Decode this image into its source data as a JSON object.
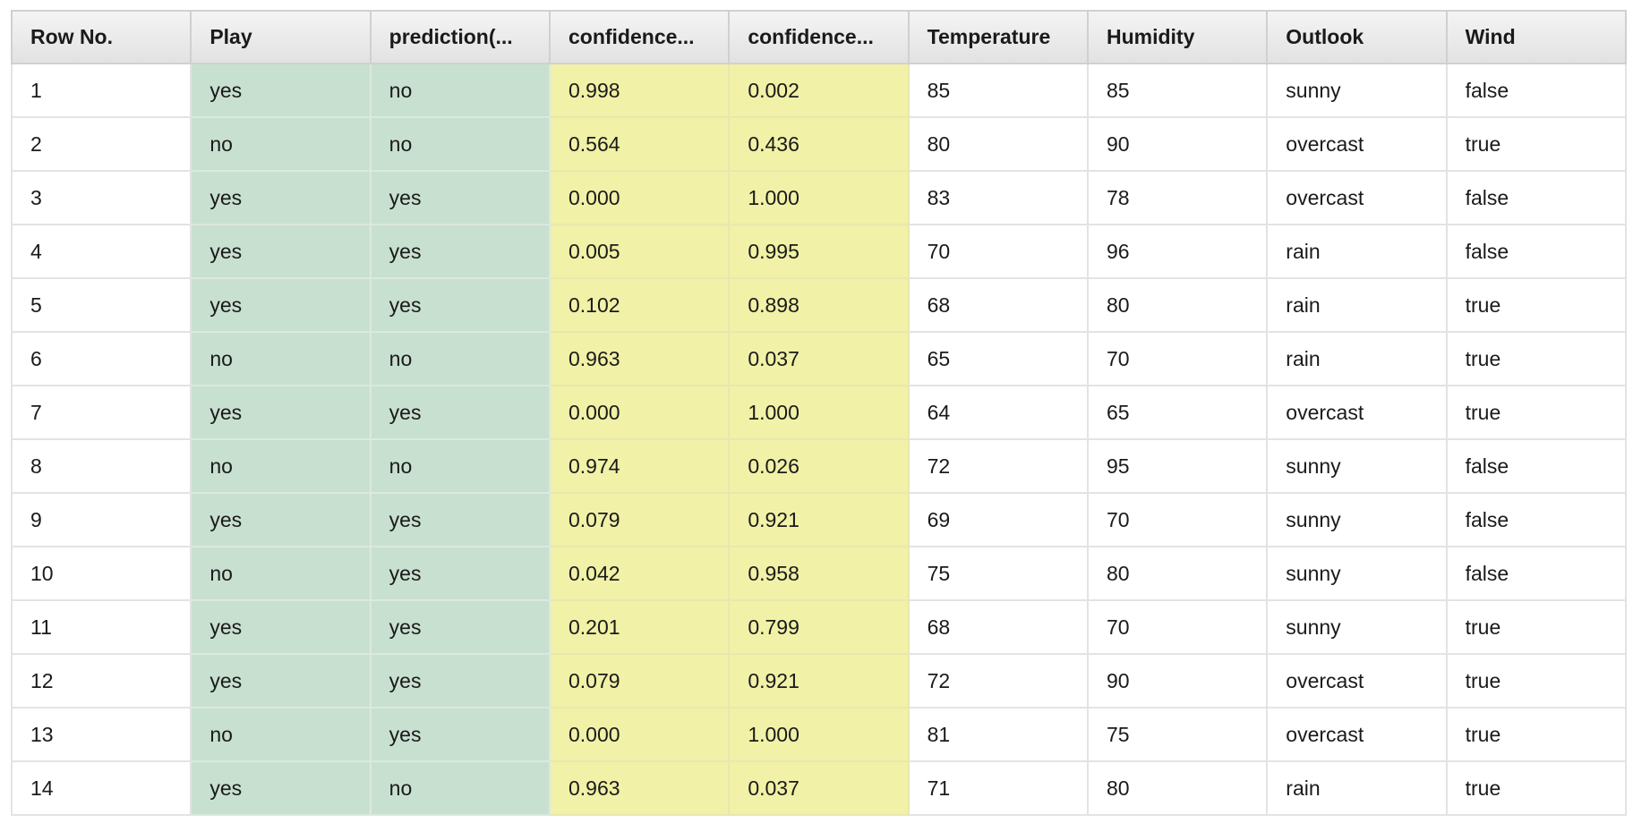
{
  "table": {
    "columns": [
      {
        "label": "Row No.",
        "role": "plain"
      },
      {
        "label": "Play",
        "role": "label"
      },
      {
        "label": "prediction(...",
        "role": "label"
      },
      {
        "label": "confidence...",
        "role": "conf"
      },
      {
        "label": "confidence...",
        "role": "conf"
      },
      {
        "label": "Temperature",
        "role": "plain"
      },
      {
        "label": "Humidity",
        "role": "plain"
      },
      {
        "label": "Outlook",
        "role": "plain"
      },
      {
        "label": "Wind",
        "role": "plain"
      }
    ],
    "rows": [
      [
        "1",
        "yes",
        "no",
        "0.998",
        "0.002",
        "85",
        "85",
        "sunny",
        "false"
      ],
      [
        "2",
        "no",
        "no",
        "0.564",
        "0.436",
        "80",
        "90",
        "overcast",
        "true"
      ],
      [
        "3",
        "yes",
        "yes",
        "0.000",
        "1.000",
        "83",
        "78",
        "overcast",
        "false"
      ],
      [
        "4",
        "yes",
        "yes",
        "0.005",
        "0.995",
        "70",
        "96",
        "rain",
        "false"
      ],
      [
        "5",
        "yes",
        "yes",
        "0.102",
        "0.898",
        "68",
        "80",
        "rain",
        "true"
      ],
      [
        "6",
        "no",
        "no",
        "0.963",
        "0.037",
        "65",
        "70",
        "rain",
        "true"
      ],
      [
        "7",
        "yes",
        "yes",
        "0.000",
        "1.000",
        "64",
        "65",
        "overcast",
        "true"
      ],
      [
        "8",
        "no",
        "no",
        "0.974",
        "0.026",
        "72",
        "95",
        "sunny",
        "false"
      ],
      [
        "9",
        "yes",
        "yes",
        "0.079",
        "0.921",
        "69",
        "70",
        "sunny",
        "false"
      ],
      [
        "10",
        "no",
        "yes",
        "0.042",
        "0.958",
        "75",
        "80",
        "sunny",
        "false"
      ],
      [
        "11",
        "yes",
        "yes",
        "0.201",
        "0.799",
        "68",
        "70",
        "sunny",
        "true"
      ],
      [
        "12",
        "yes",
        "yes",
        "0.079",
        "0.921",
        "72",
        "90",
        "overcast",
        "true"
      ],
      [
        "13",
        "no",
        "yes",
        "0.000",
        "1.000",
        "81",
        "75",
        "overcast",
        "true"
      ],
      [
        "14",
        "yes",
        "no",
        "0.963",
        "0.037",
        "71",
        "80",
        "rain",
        "true"
      ]
    ]
  },
  "colors": {
    "label_column_bg": "#c8e0d0",
    "confidence_column_bg": "#f1f1a7",
    "header_bg": "#e6e6e6",
    "grid_line": "#e3e3e3"
  }
}
